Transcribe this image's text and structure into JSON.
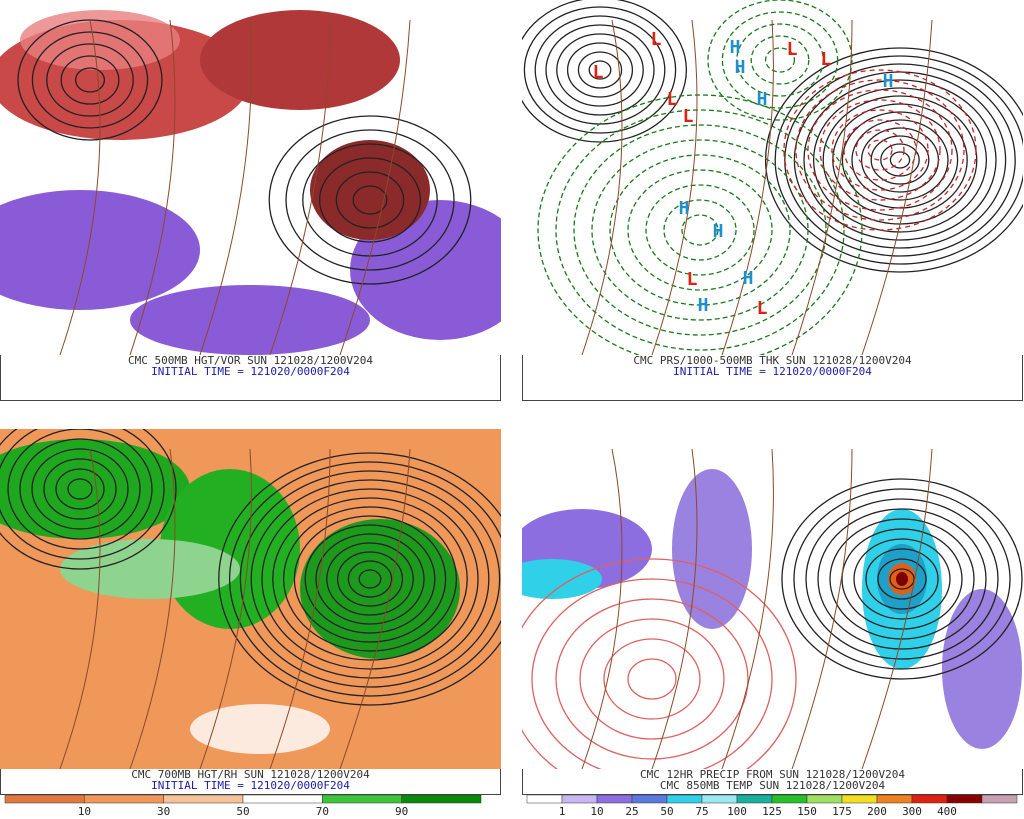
{
  "panels": [
    {
      "caption": [
        "CMC 500MB HGT/VOR SUN 121028/1200V204",
        "INITIAL TIME = 121020/0000F204"
      ]
    },
    {
      "caption": [
        "CMC PRS/1000-500MB THK SUN 121028/1200V204",
        "INITIAL TIME = 121020/0000F204"
      ],
      "markers": [
        "L",
        "L",
        "L",
        "L",
        "L",
        "L",
        "H",
        "H",
        "H",
        "H",
        "H",
        "H",
        "H",
        "L",
        "L",
        "H"
      ]
    },
    {
      "caption": [
        "CMC 700MB HGT/RH SUN 121028/1200V204",
        "INITIAL TIME = 121020/0000F204"
      ],
      "colorbar": [
        10,
        30,
        50,
        70,
        90
      ]
    },
    {
      "caption": [
        "CMC 12HR PRECIP FROM SUN 121028/1200V204",
        "CMC 850MB TEMP SUN 121028/1200V204"
      ],
      "colorbar": [
        1,
        10,
        25,
        50,
        75,
        100,
        125,
        150,
        175,
        200,
        300,
        400
      ]
    }
  ]
}
